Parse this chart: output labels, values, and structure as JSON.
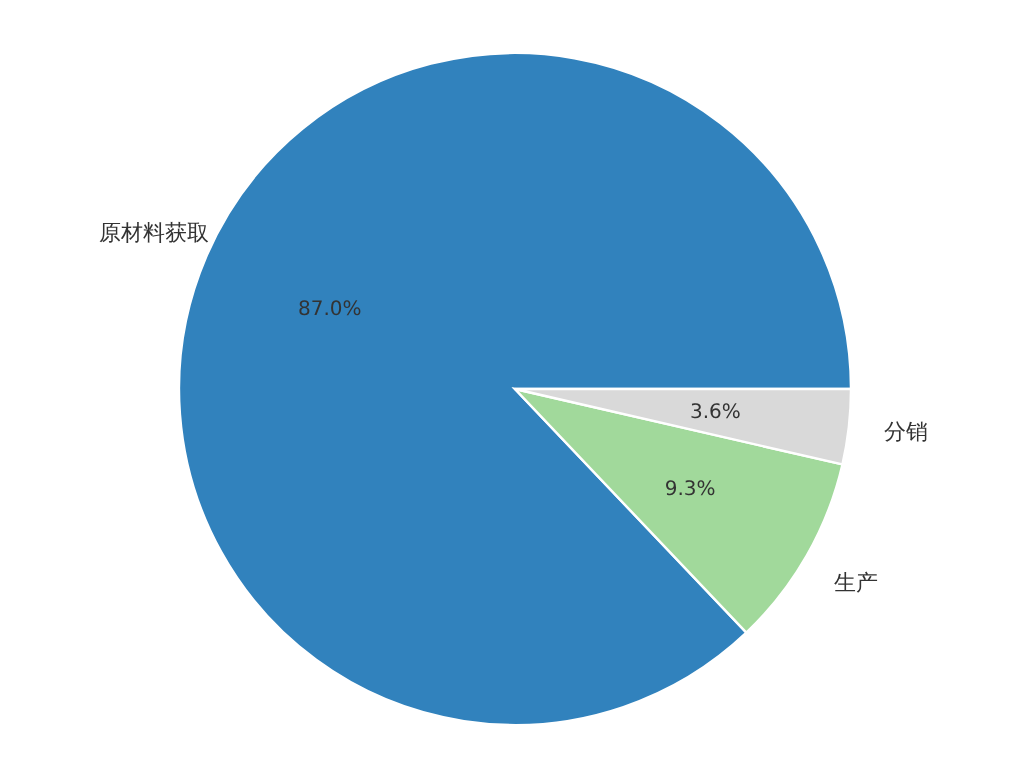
{
  "chart_data": {
    "type": "pie",
    "categories": [
      "原材料获取",
      "生产",
      "分销"
    ],
    "values": [
      87.0,
      9.3,
      3.6
    ],
    "colors": [
      "#3182bd",
      "#a1d99b",
      "#d9d9d9"
    ],
    "value_labels": [
      "87.0%",
      "9.3%",
      "3.6%"
    ]
  }
}
